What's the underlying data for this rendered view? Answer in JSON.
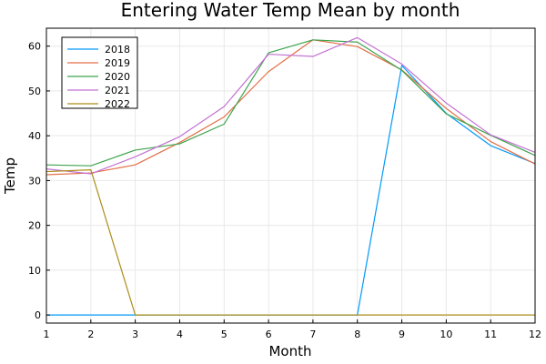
{
  "chart_data": {
    "type": "line",
    "title": "Entering Water Temp Mean by month",
    "xlabel": "Month",
    "ylabel": "Temp",
    "x": [
      1,
      2,
      3,
      4,
      5,
      6,
      7,
      8,
      9,
      10,
      11,
      12
    ],
    "xlim": [
      1,
      12
    ],
    "ylim": [
      -1.8,
      64
    ],
    "xticks": [
      1,
      2,
      3,
      4,
      5,
      6,
      7,
      8,
      9,
      10,
      11,
      12
    ],
    "yticks": [
      0,
      10,
      20,
      30,
      40,
      50,
      60
    ],
    "grid": true,
    "legend_position": "top-left",
    "series": [
      {
        "name": "2018",
        "color": "#009AFA",
        "values": [
          0,
          0,
          0,
          0,
          0,
          0,
          0,
          0,
          55.7,
          45.0,
          37.8,
          33.8
        ]
      },
      {
        "name": "2019",
        "color": "#E36F47",
        "values": [
          31.3,
          31.7,
          33.5,
          38.5,
          44.2,
          54.3,
          61.4,
          59.9,
          54.7,
          46.1,
          38.7,
          33.7
        ]
      },
      {
        "name": "2020",
        "color": "#3EA44E",
        "values": [
          33.5,
          33.3,
          36.8,
          38.2,
          42.6,
          58.5,
          61.4,
          60.9,
          54.6,
          44.9,
          40.1,
          35.6
        ]
      },
      {
        "name": "2021",
        "color": "#C371D2",
        "values": [
          32.6,
          31.5,
          35.3,
          39.8,
          46.5,
          58.2,
          57.7,
          61.9,
          56.0,
          47.3,
          40.2,
          36.3
        ]
      },
      {
        "name": "2022",
        "color": "#AC8D18",
        "values": [
          32.0,
          32.4,
          0,
          0,
          0,
          0,
          0,
          0,
          0,
          0,
          0,
          0
        ]
      }
    ]
  }
}
